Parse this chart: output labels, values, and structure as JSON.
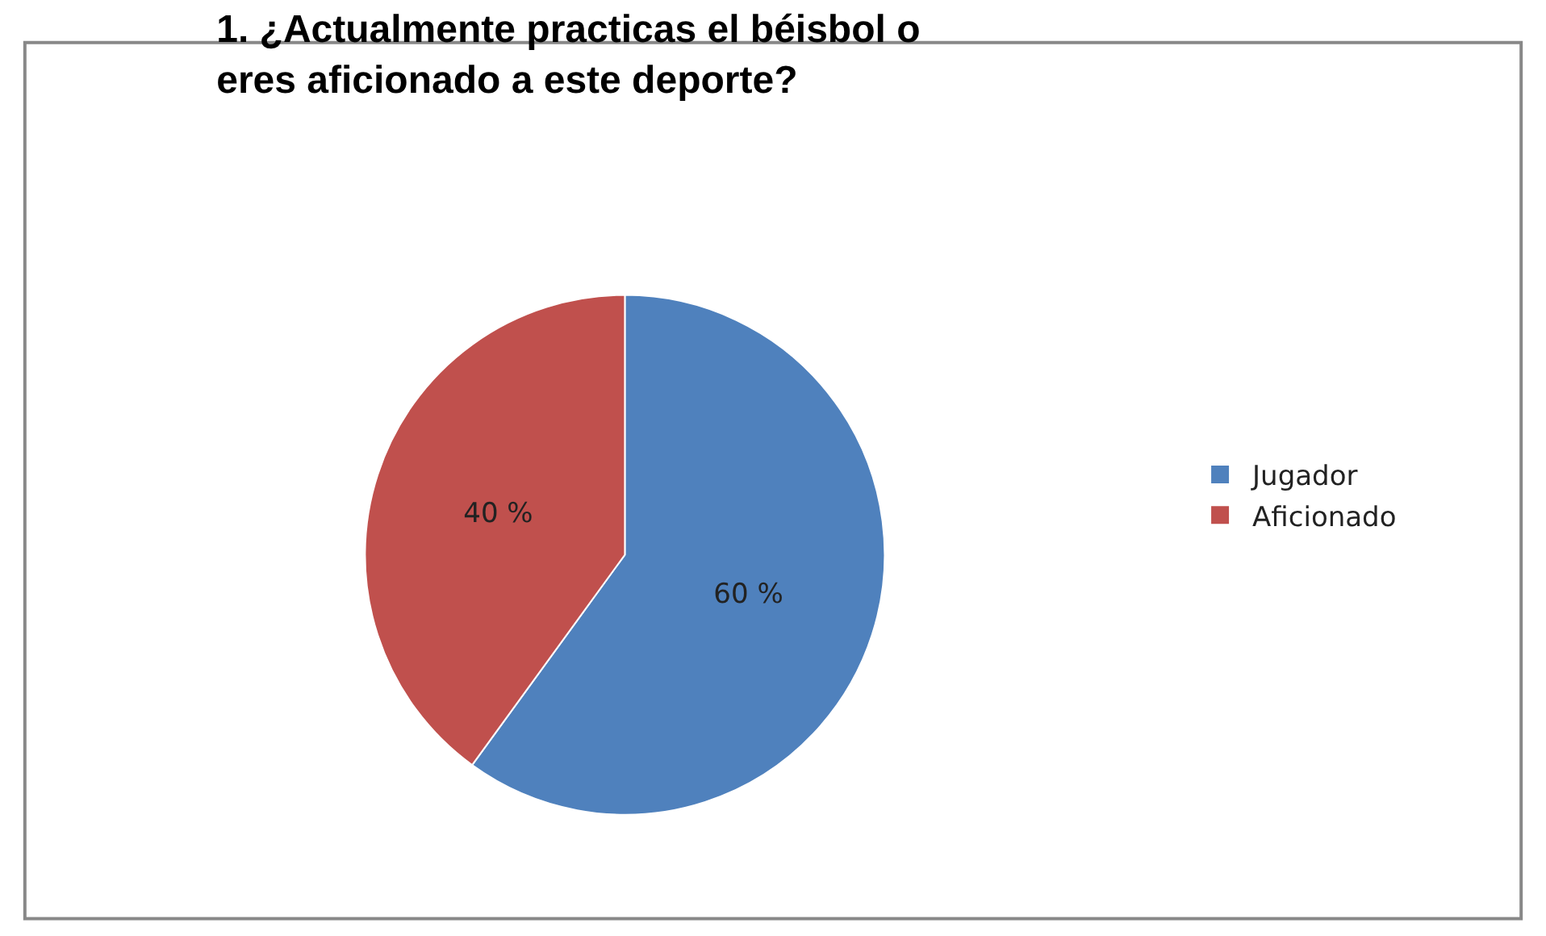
{
  "chart_data": {
    "type": "pie",
    "title": "1. ¿Actualmente practicas el béisbol o eres aficionado a este deporte?",
    "categories": [
      "Jugador",
      "Aficionado"
    ],
    "values": [
      60,
      40
    ],
    "colors": [
      "#4f81bd",
      "#c0504d"
    ],
    "value_labels": [
      "60 %",
      "40 %"
    ],
    "legend": "right"
  }
}
